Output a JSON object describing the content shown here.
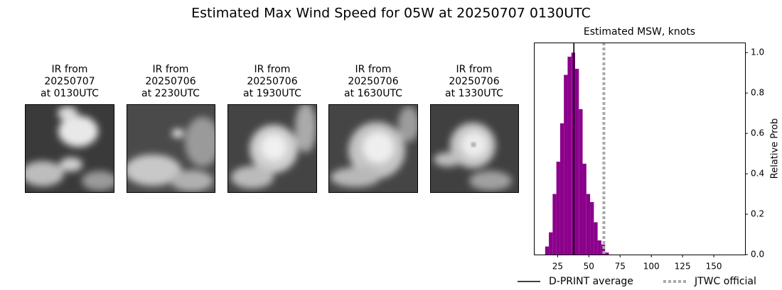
{
  "title": "Estimated Max Wind Speed for 05W at 20250707 0130UTC",
  "panels": [
    {
      "lines": [
        "IR from",
        "20250707",
        "at 0130UTC"
      ]
    },
    {
      "lines": [
        "IR from",
        "20250706",
        "at 2230UTC"
      ]
    },
    {
      "lines": [
        "IR from",
        "20250706",
        "at 1930UTC"
      ]
    },
    {
      "lines": [
        "IR from",
        "20250706",
        "at 1630UTC"
      ]
    },
    {
      "lines": [
        "IR from",
        "20250706",
        "at 1330UTC"
      ]
    }
  ],
  "chart_data": {
    "type": "histogram",
    "title": "Estimated MSW, knots",
    "y_label": "Relative Prob",
    "bins": [
      15,
      18,
      21,
      24,
      27,
      30,
      33,
      36,
      39,
      42,
      45,
      48,
      51,
      54,
      57,
      60,
      63,
      66
    ],
    "counts": [
      0.04,
      0.11,
      0.3,
      0.46,
      0.65,
      0.89,
      0.98,
      1.0,
      0.92,
      0.72,
      0.45,
      0.3,
      0.26,
      0.16,
      0.07,
      0.05,
      0.01
    ],
    "color": "#8b008b",
    "xlim": [
      6,
      175
    ],
    "xticks": [
      25,
      50,
      75,
      100,
      125,
      150
    ],
    "ylim": [
      0,
      1.05
    ],
    "yticks": [
      {
        "value": 0,
        "label": "0.0"
      },
      {
        "value": 0.2,
        "label": "0.2"
      },
      {
        "value": 0.4,
        "label": "0.4"
      },
      {
        "value": 0.6,
        "label": "0.6"
      },
      {
        "value": 0.8,
        "label": "0.8"
      },
      {
        "value": 1.0,
        "label": "1.0"
      }
    ],
    "lines": [
      {
        "name": "D-PRINT average",
        "value": 38,
        "color": "#000000",
        "style": "solid"
      },
      {
        "name": "JTWC official",
        "value": 62,
        "color": "#aaaaaa",
        "style": "dotted"
      }
    ],
    "legend": "lower center"
  }
}
